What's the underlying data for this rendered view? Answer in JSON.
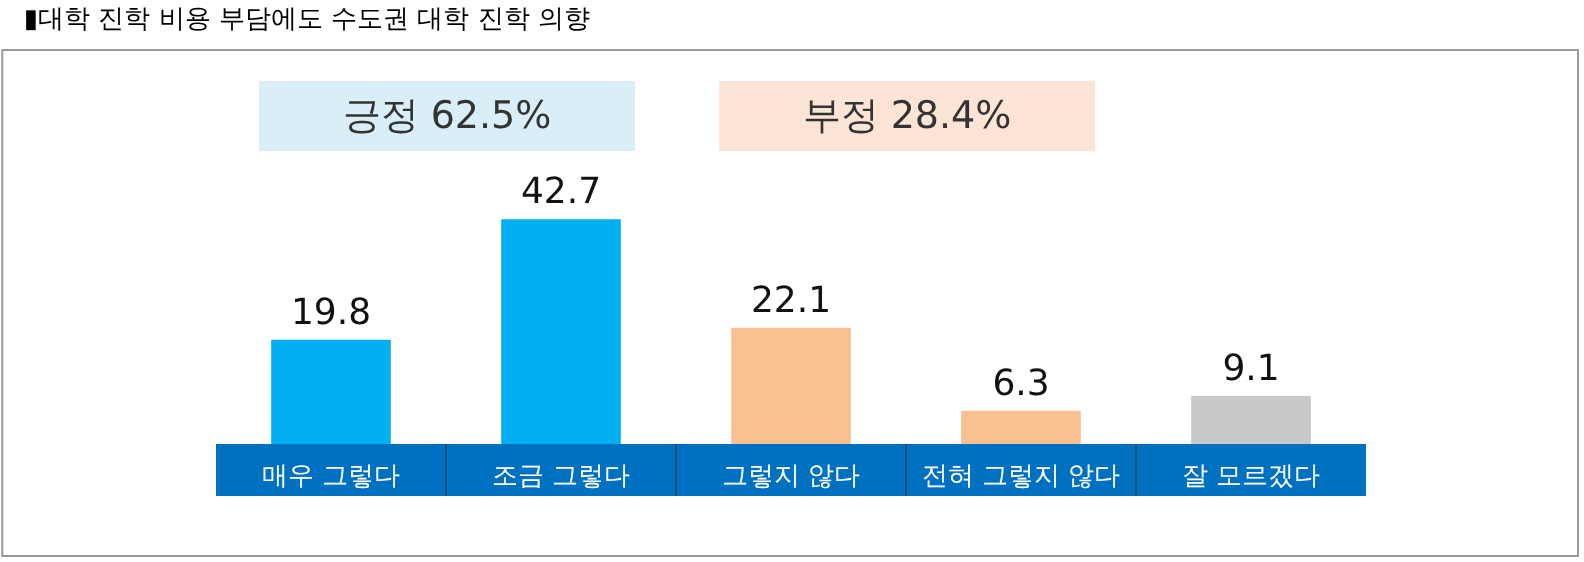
{
  "chart_data": {
    "type": "bar",
    "title": "▮대학 진학 비용 부담에도 수도권 대학 진학 의향",
    "categories": [
      "매우 그렇다",
      "조금 그렇다",
      "그렇지 않다",
      "전혀 그렇지 않다",
      "잘 모르겠다"
    ],
    "values": [
      19.8,
      42.7,
      22.1,
      6.3,
      9.1
    ],
    "colors": [
      "#00b0f0",
      "#00b0f0",
      "#f8c192",
      "#f8c192",
      "#c8c8c8"
    ],
    "data_labels": true,
    "annotations": [
      "긍정 62.5%",
      "부정 28.4%"
    ]
  }
}
